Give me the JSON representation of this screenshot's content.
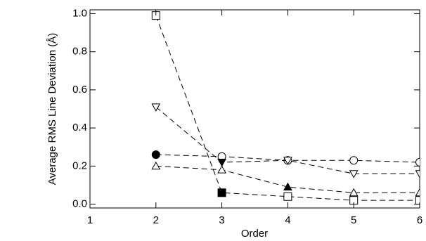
{
  "chart_data": {
    "type": "line",
    "x_label": "Order",
    "y_label": "Average RMS Line Deviation (Å)",
    "xlim": [
      1,
      6
    ],
    "xticks": [
      1,
      2,
      3,
      4,
      5,
      6
    ],
    "ylim": [
      -0.02,
      1.02
    ],
    "yticks": [
      {
        "value": 0,
        "label": "0.0"
      },
      {
        "value": 0.2,
        "label": "0.2"
      },
      {
        "value": 0.4,
        "label": "0.4"
      },
      {
        "value": 0.6,
        "label": "0.6"
      },
      {
        "value": 0.8,
        "label": "0.8"
      },
      {
        "value": 1.0,
        "label": "1.0"
      }
    ],
    "line_style": "dashed",
    "series": [
      {
        "marker": "circle",
        "color": "#000000",
        "x": [
          2,
          3,
          4,
          5,
          6
        ],
        "values": [
          0.26,
          0.25,
          0.23,
          0.23,
          0.22
        ],
        "filled": [
          true,
          false,
          false,
          false,
          false
        ]
      },
      {
        "marker": "triangle-down",
        "color": "#000000",
        "x": [
          2,
          3,
          4,
          5,
          6
        ],
        "values": [
          0.51,
          0.22,
          0.23,
          0.16,
          0.16
        ],
        "filled": [
          false,
          true,
          false,
          false,
          false
        ]
      },
      {
        "marker": "triangle-up",
        "color": "#000000",
        "x": [
          2,
          3,
          4,
          5,
          6
        ],
        "values": [
          0.2,
          0.18,
          0.09,
          0.06,
          0.06
        ],
        "filled": [
          false,
          false,
          true,
          false,
          false
        ]
      },
      {
        "marker": "square",
        "color": "#000000",
        "x": [
          2,
          3,
          4,
          5,
          6
        ],
        "values": [
          0.99,
          0.06,
          0.04,
          0.02,
          0.02
        ],
        "filled": [
          false,
          true,
          false,
          false,
          false
        ]
      }
    ]
  }
}
